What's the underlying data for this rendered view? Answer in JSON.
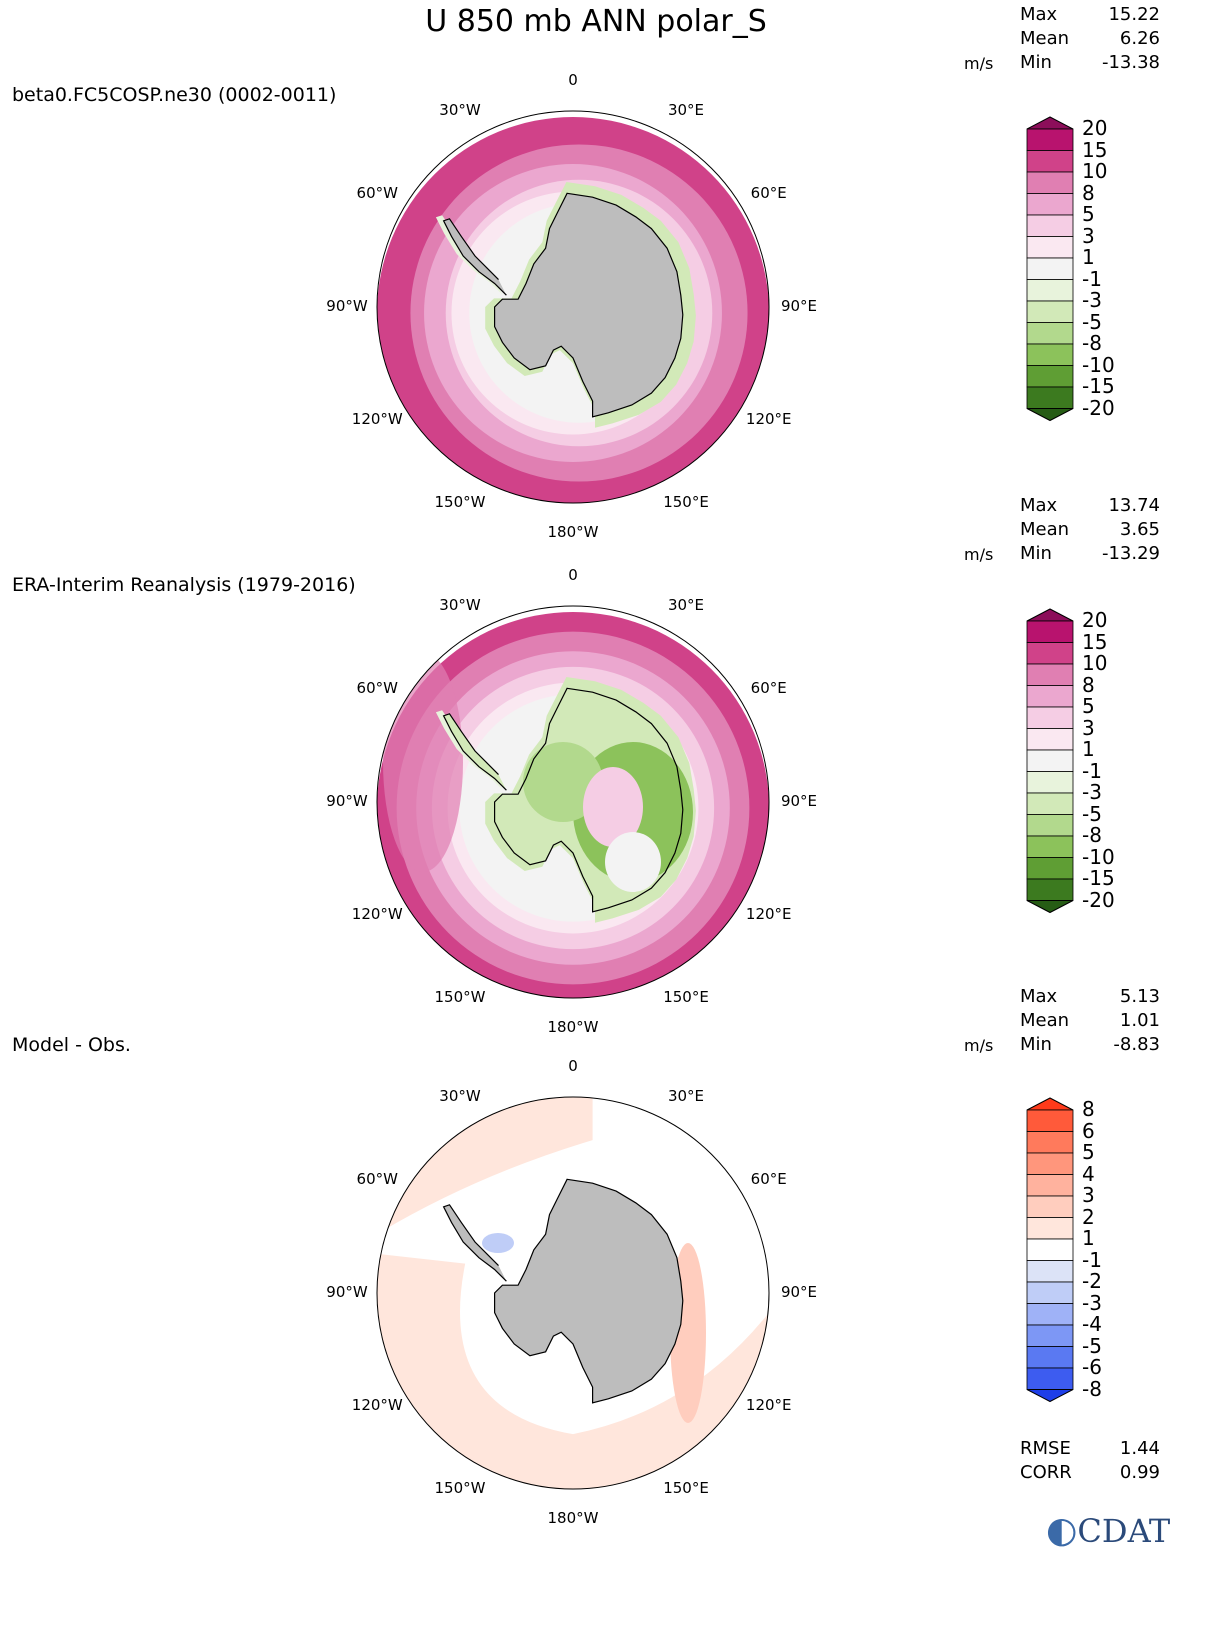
{
  "title": "U 850 mb ANN polar_S",
  "units": "m/s",
  "stat_names": {
    "max": "Max",
    "mean": "Mean",
    "min": "Min",
    "rmse": "RMSE",
    "corr": "CORR"
  },
  "logo": "CDAT",
  "panels": [
    {
      "label": "beta0.FC5COSP.ne30 (0002-0011)",
      "stats": {
        "max": "15.22",
        "mean": "6.26",
        "min": "-13.38"
      }
    },
    {
      "label": "ERA-Interim Reanalysis (1979-2016)",
      "stats": {
        "max": "13.74",
        "mean": "3.65",
        "min": "-13.29"
      }
    },
    {
      "label": "Model - Obs.",
      "stats": {
        "max": "5.13",
        "mean": "1.01",
        "min": "-8.83"
      },
      "rmse": "1.44",
      "corr": "0.99"
    }
  ],
  "lon_labels": {
    "top": "0",
    "w30": "30°W",
    "e30": "30°E",
    "w60": "60°W",
    "e60": "60°E",
    "w90": "90°W",
    "e90": "90°E",
    "w120": "120°W",
    "e120": "120°E",
    "w150": "150°W",
    "e150": "150°E",
    "bottom": "180°W"
  },
  "chart_data": [
    {
      "type": "heatmap",
      "projection": "south polar stereographic",
      "title": "beta0.FC5COSP.ne30 (0002-0011)",
      "colorbar": {
        "levels": [
          "20",
          "15",
          "10",
          "8",
          "5",
          "3",
          "1",
          "-1",
          "-3",
          "-5",
          "-8",
          "-10",
          "-15",
          "-20"
        ],
        "colors": [
          "#8c0e5a",
          "#b8136e",
          "#d04289",
          "#e07fb2",
          "#eba7cf",
          "#f5cde4",
          "#fae8f1",
          "#f3f3f3",
          "#e8f3dc",
          "#d2e9b8",
          "#b2d98d",
          "#8cc25b",
          "#5f9e34",
          "#3c7a1f",
          "#265c15"
        ]
      }
    },
    {
      "type": "heatmap",
      "projection": "south polar stereographic",
      "title": "ERA-Interim Reanalysis (1979-2016)",
      "colorbar": {
        "levels": [
          "20",
          "15",
          "10",
          "8",
          "5",
          "3",
          "1",
          "-1",
          "-3",
          "-5",
          "-8",
          "-10",
          "-15",
          "-20"
        ],
        "colors": [
          "#8c0e5a",
          "#b8136e",
          "#d04289",
          "#e07fb2",
          "#eba7cf",
          "#f5cde4",
          "#fae8f1",
          "#f3f3f3",
          "#e8f3dc",
          "#d2e9b8",
          "#b2d98d",
          "#8cc25b",
          "#5f9e34",
          "#3c7a1f",
          "#265c15"
        ]
      }
    },
    {
      "type": "heatmap",
      "projection": "south polar stereographic",
      "title": "Model - Obs.",
      "colorbar": {
        "levels": [
          "8",
          "6",
          "5",
          "4",
          "3",
          "2",
          "1",
          "-1",
          "-2",
          "-3",
          "-4",
          "-5",
          "-6",
          "-8"
        ],
        "colors": [
          "#ff3a1a",
          "#ff5a3a",
          "#ff7a5c",
          "#ff967c",
          "#ffb29e",
          "#ffcdbe",
          "#ffe6dc",
          "#ffffff",
          "#dce3f7",
          "#bfcdf7",
          "#9fb2f7",
          "#7d97f5",
          "#5a79f2",
          "#3d5cf0",
          "#1e3ee8"
        ]
      }
    }
  ]
}
